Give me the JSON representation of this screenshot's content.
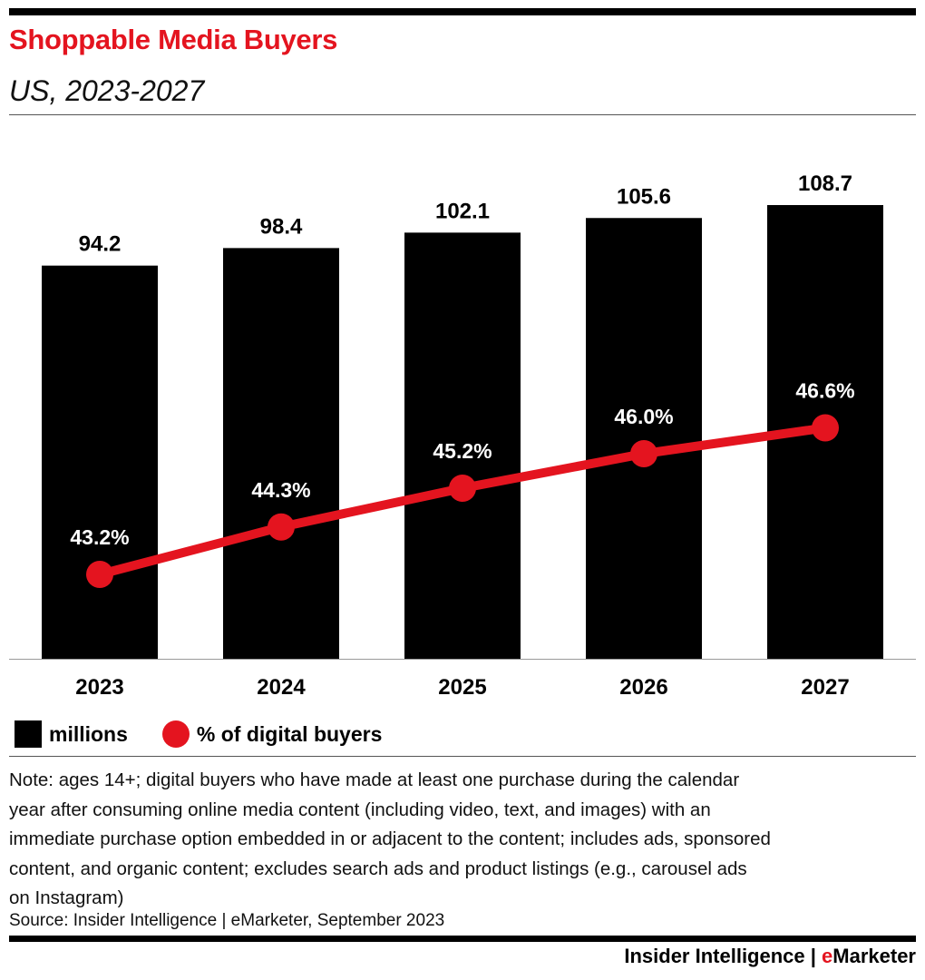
{
  "header": {
    "title": "Shoppable Media Buyers",
    "subtitle": "US, 2023-2027"
  },
  "chart_data": {
    "type": "bar",
    "title": "Shoppable Media Buyers",
    "subtitle": "US, 2023-2027",
    "categories": [
      "2023",
      "2024",
      "2025",
      "2026",
      "2027"
    ],
    "series": [
      {
        "name": "millions",
        "type": "bar",
        "values": [
          94.2,
          98.4,
          102.1,
          105.6,
          108.7
        ],
        "labels": [
          "94.2",
          "98.4",
          "102.1",
          "105.6",
          "108.7"
        ],
        "color": "#000000"
      },
      {
        "name": "% of digital buyers",
        "type": "line",
        "values": [
          43.2,
          44.3,
          45.2,
          46.0,
          46.6
        ],
        "labels": [
          "43.2%",
          "44.3%",
          "45.2%",
          "46.0%",
          "46.6%"
        ],
        "color": "#e4141f"
      }
    ],
    "ylim": [
      0,
      108.7
    ],
    "pct_range": [
      38,
      50
    ],
    "legend_position": "bottom-left"
  },
  "legend": {
    "items": [
      "millions",
      "% of digital buyers"
    ]
  },
  "note": {
    "lines": [
      "Note: ages 14+; digital buyers who have made at least one purchase during the calendar",
      "year after consuming online media content (including video, text, and images) with an",
      "immediate purchase option embedded in or adjacent to the content; includes ads, sponsored",
      "content, and organic content; excludes search ads and product listings (e.g., carousel ads",
      "on Instagram)"
    ]
  },
  "source": "Source: Insider Intelligence | eMarketer, September 2023",
  "brand": {
    "part1": "Insider Intelligence | ",
    "accent": "e",
    "part2": "Marketer"
  },
  "colors": {
    "accent": "#e4141f",
    "bar": "#000000",
    "background": "#ffffff"
  }
}
